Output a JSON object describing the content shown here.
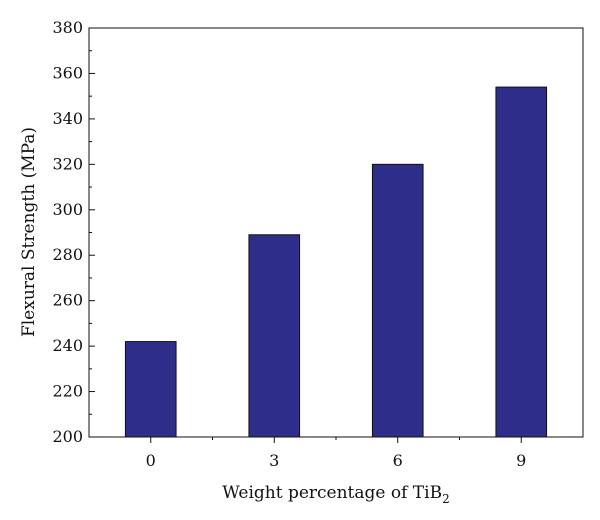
{
  "chart_data": {
    "type": "bar",
    "categories": [
      "0",
      "3",
      "6",
      "9"
    ],
    "values": [
      242,
      289,
      320,
      354
    ],
    "xlabel": "Weight percentage of TiB",
    "xlabel_subscript": "2",
    "ylabel": "Flexural Strength (MPa)",
    "ylim": [
      200,
      380
    ],
    "y_ticks": [
      "200",
      "220",
      "240",
      "260",
      "280",
      "300",
      "320",
      "340",
      "360",
      "380"
    ],
    "grid": false,
    "legend": "none",
    "colors": {
      "bar_fill": "#2e2e8a",
      "bar_stroke": "#111111",
      "axis": "#111111"
    }
  }
}
